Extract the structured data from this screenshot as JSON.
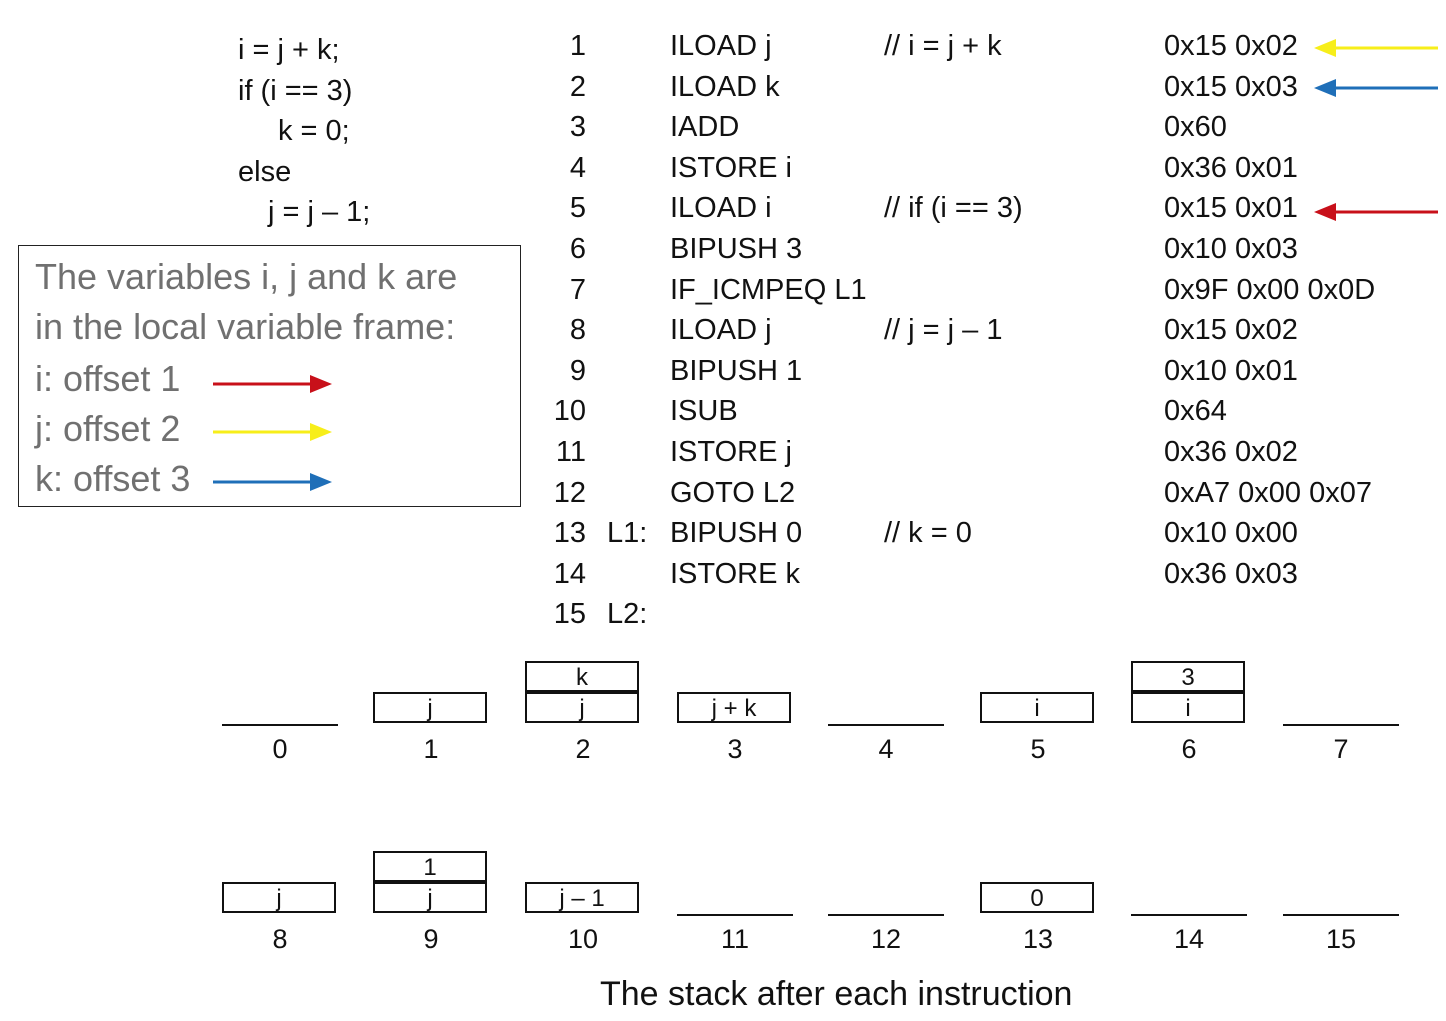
{
  "source_code": [
    "i = j + k;",
    "if (i == 3)",
    "k = 0;",
    "else",
    "j = j – 1;"
  ],
  "colors": {
    "yellow": "#f7ee1a",
    "blue": "#1f6fb8",
    "red": "#c8101a",
    "legend_text": "#707070"
  },
  "program": [
    {
      "n": "1",
      "label": "",
      "instr": "ILOAD j",
      "comment": "// i = j + k",
      "hex": "0x15 0x02",
      "arrow": "yellow"
    },
    {
      "n": "2",
      "label": "",
      "instr": "ILOAD k",
      "comment": "",
      "hex": "0x15 0x03",
      "arrow": "blue"
    },
    {
      "n": "3",
      "label": "",
      "instr": "IADD",
      "comment": "",
      "hex": "0x60"
    },
    {
      "n": "4",
      "label": "",
      "instr": "ISTORE i",
      "comment": "",
      "hex": "0x36 0x01"
    },
    {
      "n": "5",
      "label": "",
      "instr": "ILOAD i",
      "comment": "// if (i == 3)",
      "hex": "0x15 0x01",
      "arrow": "red"
    },
    {
      "n": "6",
      "label": "",
      "instr": "BIPUSH 3",
      "comment": "",
      "hex": "0x10 0x03"
    },
    {
      "n": "7",
      "label": "",
      "instr": "IF_ICMPEQ L1",
      "comment": "",
      "hex": "0x9F 0x00 0x0D"
    },
    {
      "n": "8",
      "label": "",
      "instr": "ILOAD j",
      "comment": "// j = j – 1",
      "hex": "0x15 0x02"
    },
    {
      "n": "9",
      "label": "",
      "instr": "BIPUSH 1",
      "comment": "",
      "hex": "0x10 0x01"
    },
    {
      "n": "10",
      "label": "",
      "instr": "ISUB",
      "comment": "",
      "hex": "0x64"
    },
    {
      "n": "11",
      "label": "",
      "instr": "ISTORE j",
      "comment": "",
      "hex": "0x36 0x02"
    },
    {
      "n": "12",
      "label": "",
      "instr": "GOTO L2",
      "comment": "",
      "hex": "0xA7 0x00 0x07"
    },
    {
      "n": "13",
      "label": "L1:",
      "instr": "BIPUSH 0",
      "comment": "// k = 0",
      "hex": "0x10 0x00"
    },
    {
      "n": "14",
      "label": "",
      "instr": "ISTORE k",
      "comment": "",
      "hex": "0x36 0x03"
    },
    {
      "n": "15",
      "label": "L2:",
      "instr": "",
      "comment": "",
      "hex": ""
    }
  ],
  "legend": {
    "lines": [
      "The variables i, j and k are",
      "in the local variable frame:"
    ],
    "offsets": [
      {
        "text": "i: offset 1",
        "color": "red"
      },
      {
        "text": "j: offset 2",
        "color": "yellow"
      },
      {
        "text": "k: offset 3",
        "color": "blue"
      }
    ]
  },
  "stacks": [
    {
      "index": "0",
      "cells": []
    },
    {
      "index": "1",
      "cells": [
        "j"
      ]
    },
    {
      "index": "2",
      "cells": [
        "j",
        "k"
      ]
    },
    {
      "index": "3",
      "cells": [
        "j + k"
      ]
    },
    {
      "index": "4",
      "cells": []
    },
    {
      "index": "5",
      "cells": [
        "i"
      ]
    },
    {
      "index": "6",
      "cells": [
        "i",
        "3"
      ]
    },
    {
      "index": "7",
      "cells": []
    },
    {
      "index": "8",
      "cells": [
        "j"
      ]
    },
    {
      "index": "9",
      "cells": [
        "j",
        "1"
      ]
    },
    {
      "index": "10",
      "cells": [
        "j – 1"
      ]
    },
    {
      "index": "11",
      "cells": []
    },
    {
      "index": "12",
      "cells": []
    },
    {
      "index": "13",
      "cells": [
        "0"
      ]
    },
    {
      "index": "14",
      "cells": []
    },
    {
      "index": "15",
      "cells": []
    }
  ],
  "caption": "The stack after each instruction"
}
